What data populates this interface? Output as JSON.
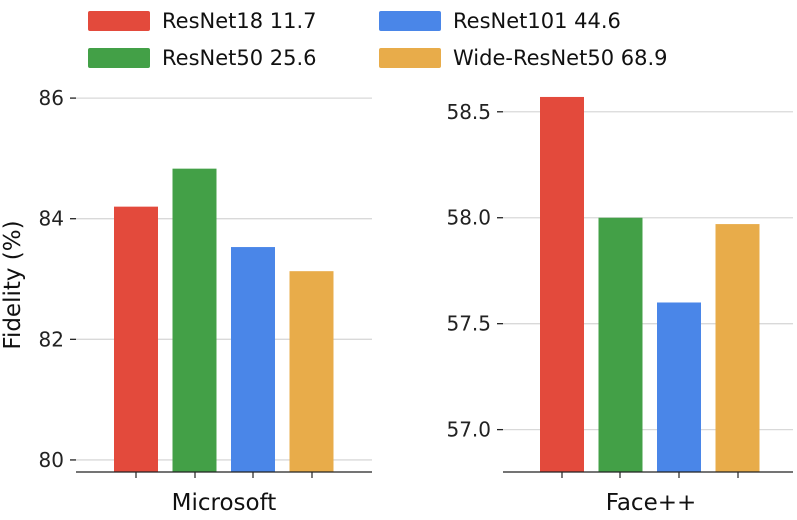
{
  "chart_data": {
    "type": "bar",
    "ylabel": "Fidelity (%)",
    "legend": {
      "placement": "top",
      "entries": [
        {
          "label": "ResNet18 11.7",
          "color": "#e34a3c"
        },
        {
          "label": "ResNet50 25.6",
          "color": "#43a047"
        },
        {
          "label": "ResNet101 44.6",
          "color": "#4a86e8"
        },
        {
          "label": "Wide-ResNet50 68.9",
          "color": "#e8ac4a"
        }
      ]
    },
    "panels": [
      {
        "name": "microsoft",
        "xlabel": "Microsoft",
        "ylim": [
          79.8,
          86.3
        ],
        "yticks": [
          80,
          82,
          84,
          86
        ],
        "ytick_labels": [
          "80",
          "82",
          "84",
          "86"
        ],
        "series": [
          {
            "name": "ResNet18 11.7",
            "value": 84.2
          },
          {
            "name": "ResNet50 25.6",
            "value": 84.83
          },
          {
            "name": "ResNet101 44.6",
            "value": 83.53
          },
          {
            "name": "Wide-ResNet50 68.9",
            "value": 83.13
          }
        ]
      },
      {
        "name": "faceplusplus",
        "xlabel": "Face++",
        "ylim": [
          56.8,
          58.65
        ],
        "yticks": [
          57.0,
          57.5,
          58.0,
          58.5
        ],
        "ytick_labels": [
          "57.0",
          "57.5",
          "58.0",
          "58.5"
        ],
        "series": [
          {
            "name": "ResNet18 11.7",
            "value": 58.57
          },
          {
            "name": "ResNet50 25.6",
            "value": 58.0
          },
          {
            "name": "ResNet101 44.6",
            "value": 57.6
          },
          {
            "name": "Wide-ResNet50 68.9",
            "value": 57.97
          }
        ]
      }
    ]
  }
}
